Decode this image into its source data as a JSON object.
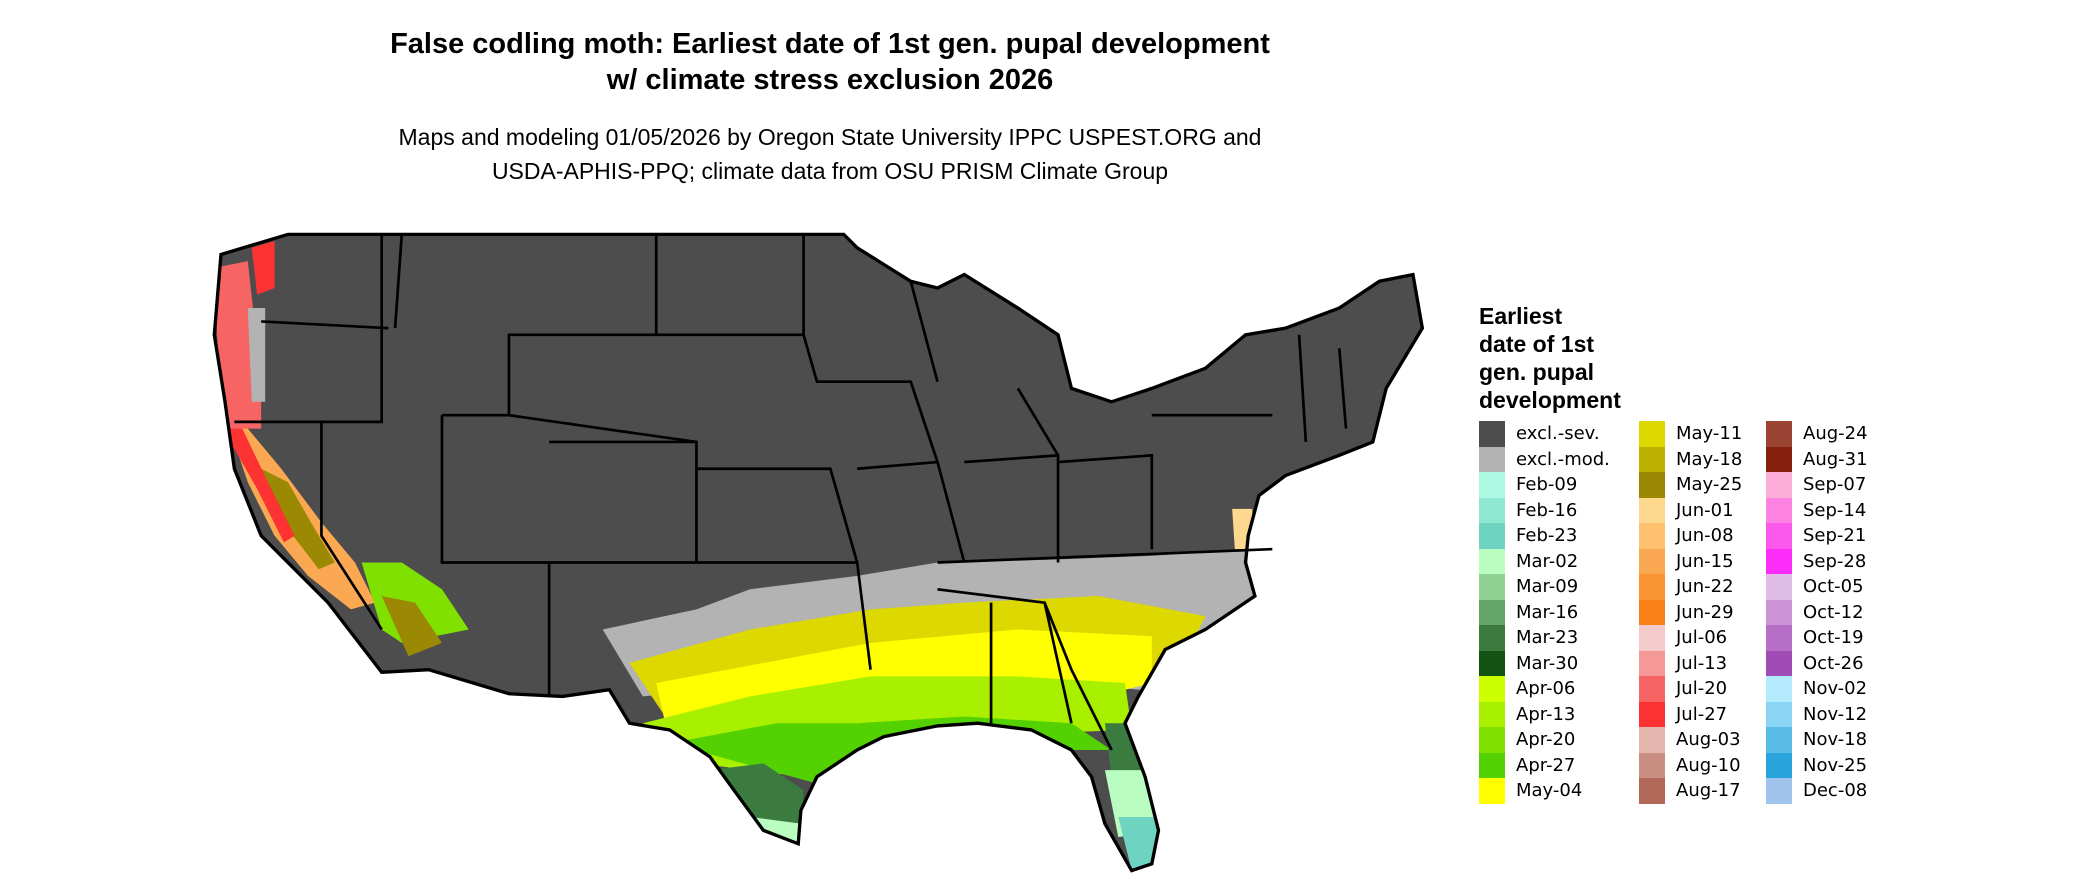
{
  "title": {
    "line1": "False codling moth: Earliest date of 1st gen. pupal development",
    "line2": "w/ climate stress exclusion 2026"
  },
  "subtitle": {
    "line1": "Maps and modeling 01/05/2026 by Oregon State University IPPC USPEST.ORG and",
    "line2": "USDA-APHIS-PPQ; climate data from OSU PRISM Climate Group"
  },
  "legend": {
    "title_lines": [
      "Earliest",
      "date of 1st",
      "gen. pupal",
      "development"
    ],
    "columns": [
      [
        {
          "label": "excl.-sev.",
          "color": "#4d4d4d"
        },
        {
          "label": "excl.-mod.",
          "color": "#b3b3b3"
        },
        {
          "label": "Feb-09",
          "color": "#adf9e1"
        },
        {
          "label": "Feb-16",
          "color": "#8fe8d2"
        },
        {
          "label": "Feb-23",
          "color": "#6fd3c1"
        },
        {
          "label": "Mar-02",
          "color": "#b9fdc0"
        },
        {
          "label": "Mar-09",
          "color": "#8fd294"
        },
        {
          "label": "Mar-16",
          "color": "#64a66a"
        },
        {
          "label": "Mar-23",
          "color": "#3b7b3f"
        },
        {
          "label": "Mar-30",
          "color": "#125313"
        },
        {
          "label": "Apr-06",
          "color": "#ccff00"
        },
        {
          "label": "Apr-13",
          "color": "#a9ef00"
        },
        {
          "label": "Apr-20",
          "color": "#80e000"
        },
        {
          "label": "Apr-27",
          "color": "#53d100"
        },
        {
          "label": "May-04",
          "color": "#ffff00"
        }
      ],
      [
        {
          "label": "May-11",
          "color": "#dcd800"
        },
        {
          "label": "May-18",
          "color": "#bcb100"
        },
        {
          "label": "May-25",
          "color": "#9b8904"
        },
        {
          "label": "Jun-01",
          "color": "#fed88e"
        },
        {
          "label": "Jun-08",
          "color": "#fdc170"
        },
        {
          "label": "Jun-15",
          "color": "#fba852"
        },
        {
          "label": "Jun-22",
          "color": "#fb9533"
        },
        {
          "label": "Jun-29",
          "color": "#fa8015"
        },
        {
          "label": "Jul-06",
          "color": "#f4cbcb"
        },
        {
          "label": "Jul-13",
          "color": "#f49898"
        },
        {
          "label": "Jul-20",
          "color": "#f66464"
        },
        {
          "label": "Jul-27",
          "color": "#fd3333"
        },
        {
          "label": "Aug-03",
          "color": "#e5b6ae"
        },
        {
          "label": "Aug-10",
          "color": "#c88e82"
        },
        {
          "label": "Aug-17",
          "color": "#b3695a"
        }
      ],
      [
        {
          "label": "Aug-24",
          "color": "#9b4433"
        },
        {
          "label": "Aug-31",
          "color": "#85200c"
        },
        {
          "label": "Sep-07",
          "color": "#fcaed9"
        },
        {
          "label": "Sep-14",
          "color": "#fd82e1"
        },
        {
          "label": "Sep-21",
          "color": "#fd58ec"
        },
        {
          "label": "Sep-28",
          "color": "#fd2cf8"
        },
        {
          "label": "Oct-05",
          "color": "#e0bde6"
        },
        {
          "label": "Oct-12",
          "color": "#cb93d6"
        },
        {
          "label": "Oct-19",
          "color": "#b66ec7"
        },
        {
          "label": "Oct-26",
          "color": "#a04cb7"
        },
        {
          "label": "Nov-02",
          "color": "#b3ebfd"
        },
        {
          "label": "Nov-12",
          "color": "#89d5f3"
        },
        {
          "label": "Nov-18",
          "color": "#58bce7"
        },
        {
          "label": "Nov-25",
          "color": "#2aa5dc"
        },
        {
          "label": "Dec-08",
          "color": "#a0c4eb"
        }
      ]
    ]
  }
}
